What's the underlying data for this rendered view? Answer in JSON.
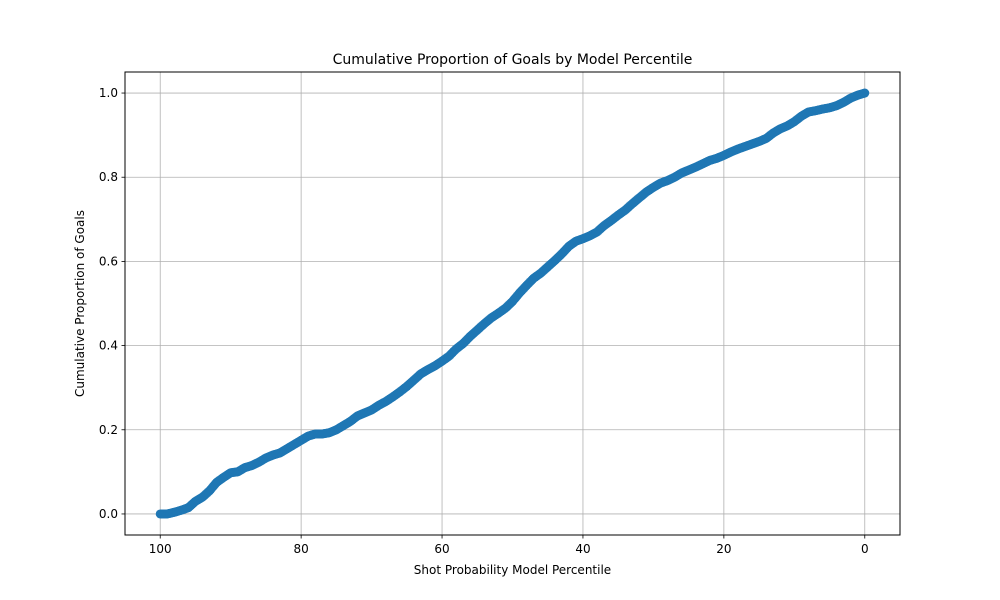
{
  "chart_data": {
    "type": "scatter",
    "title": "Cumulative Proportion of Goals by Model Percentile",
    "xlabel": "Shot Probability Model Percentile",
    "ylabel": "Cumulative Proportion of Goals",
    "xlim": [
      105,
      -5
    ],
    "ylim": [
      -0.05,
      1.05
    ],
    "x_reversed": true,
    "xticks": [
      100,
      80,
      60,
      40,
      20,
      0
    ],
    "yticks": [
      0.0,
      0.2,
      0.4,
      0.6,
      0.8,
      1.0
    ],
    "ytick_labels": [
      "0.0",
      "0.2",
      "0.4",
      "0.6",
      "0.8",
      "1.0"
    ],
    "grid": true,
    "legend": "none",
    "series": [
      {
        "color": "#1f77b4",
        "curve": [
          [
            100,
            0.0
          ],
          [
            99,
            0.0
          ],
          [
            98,
            0.004
          ],
          [
            97,
            0.009
          ],
          [
            96,
            0.015
          ],
          [
            95,
            0.03
          ],
          [
            94,
            0.04
          ],
          [
            93,
            0.055
          ],
          [
            92,
            0.075
          ],
          [
            91,
            0.087
          ],
          [
            90,
            0.098
          ],
          [
            89,
            0.1
          ],
          [
            88,
            0.11
          ],
          [
            87,
            0.115
          ],
          [
            86,
            0.123
          ],
          [
            85,
            0.133
          ],
          [
            84,
            0.14
          ],
          [
            83,
            0.145
          ],
          [
            82,
            0.155
          ],
          [
            81,
            0.165
          ],
          [
            80,
            0.175
          ],
          [
            79,
            0.185
          ],
          [
            78,
            0.19
          ],
          [
            77,
            0.19
          ],
          [
            76,
            0.193
          ],
          [
            75,
            0.2
          ],
          [
            74,
            0.21
          ],
          [
            73,
            0.22
          ],
          [
            72,
            0.233
          ],
          [
            71,
            0.24
          ],
          [
            70,
            0.247
          ],
          [
            69,
            0.258
          ],
          [
            68,
            0.267
          ],
          [
            67,
            0.278
          ],
          [
            66,
            0.29
          ],
          [
            65,
            0.303
          ],
          [
            64,
            0.318
          ],
          [
            63,
            0.333
          ],
          [
            62,
            0.343
          ],
          [
            61,
            0.352
          ],
          [
            60,
            0.363
          ],
          [
            59,
            0.375
          ],
          [
            58,
            0.392
          ],
          [
            57,
            0.405
          ],
          [
            56,
            0.422
          ],
          [
            55,
            0.437
          ],
          [
            54,
            0.452
          ],
          [
            53,
            0.466
          ],
          [
            52,
            0.477
          ],
          [
            51,
            0.489
          ],
          [
            50,
            0.505
          ],
          [
            49,
            0.525
          ],
          [
            48,
            0.543
          ],
          [
            47,
            0.56
          ],
          [
            46,
            0.572
          ],
          [
            45,
            0.587
          ],
          [
            44,
            0.602
          ],
          [
            43,
            0.618
          ],
          [
            42,
            0.636
          ],
          [
            41,
            0.648
          ],
          [
            40,
            0.654
          ],
          [
            39,
            0.661
          ],
          [
            38,
            0.67
          ],
          [
            37,
            0.685
          ],
          [
            36,
            0.697
          ],
          [
            35,
            0.71
          ],
          [
            34,
            0.722
          ],
          [
            33,
            0.737
          ],
          [
            32,
            0.751
          ],
          [
            31,
            0.765
          ],
          [
            30,
            0.776
          ],
          [
            29,
            0.786
          ],
          [
            28,
            0.792
          ],
          [
            27,
            0.8
          ],
          [
            26,
            0.81
          ],
          [
            25,
            0.817
          ],
          [
            24,
            0.824
          ],
          [
            23,
            0.832
          ],
          [
            22,
            0.84
          ],
          [
            21,
            0.845
          ],
          [
            20,
            0.852
          ],
          [
            19,
            0.86
          ],
          [
            18,
            0.867
          ],
          [
            17,
            0.873
          ],
          [
            16,
            0.879
          ],
          [
            15,
            0.885
          ],
          [
            14,
            0.892
          ],
          [
            13,
            0.905
          ],
          [
            12,
            0.915
          ],
          [
            11,
            0.922
          ],
          [
            10,
            0.932
          ],
          [
            9,
            0.945
          ],
          [
            8,
            0.955
          ],
          [
            7,
            0.958
          ],
          [
            6,
            0.962
          ],
          [
            5,
            0.965
          ],
          [
            4,
            0.97
          ],
          [
            3,
            0.978
          ],
          [
            2,
            0.988
          ],
          [
            1,
            0.995
          ],
          [
            0,
            1.0
          ]
        ],
        "points_per_unit": 6
      }
    ]
  }
}
